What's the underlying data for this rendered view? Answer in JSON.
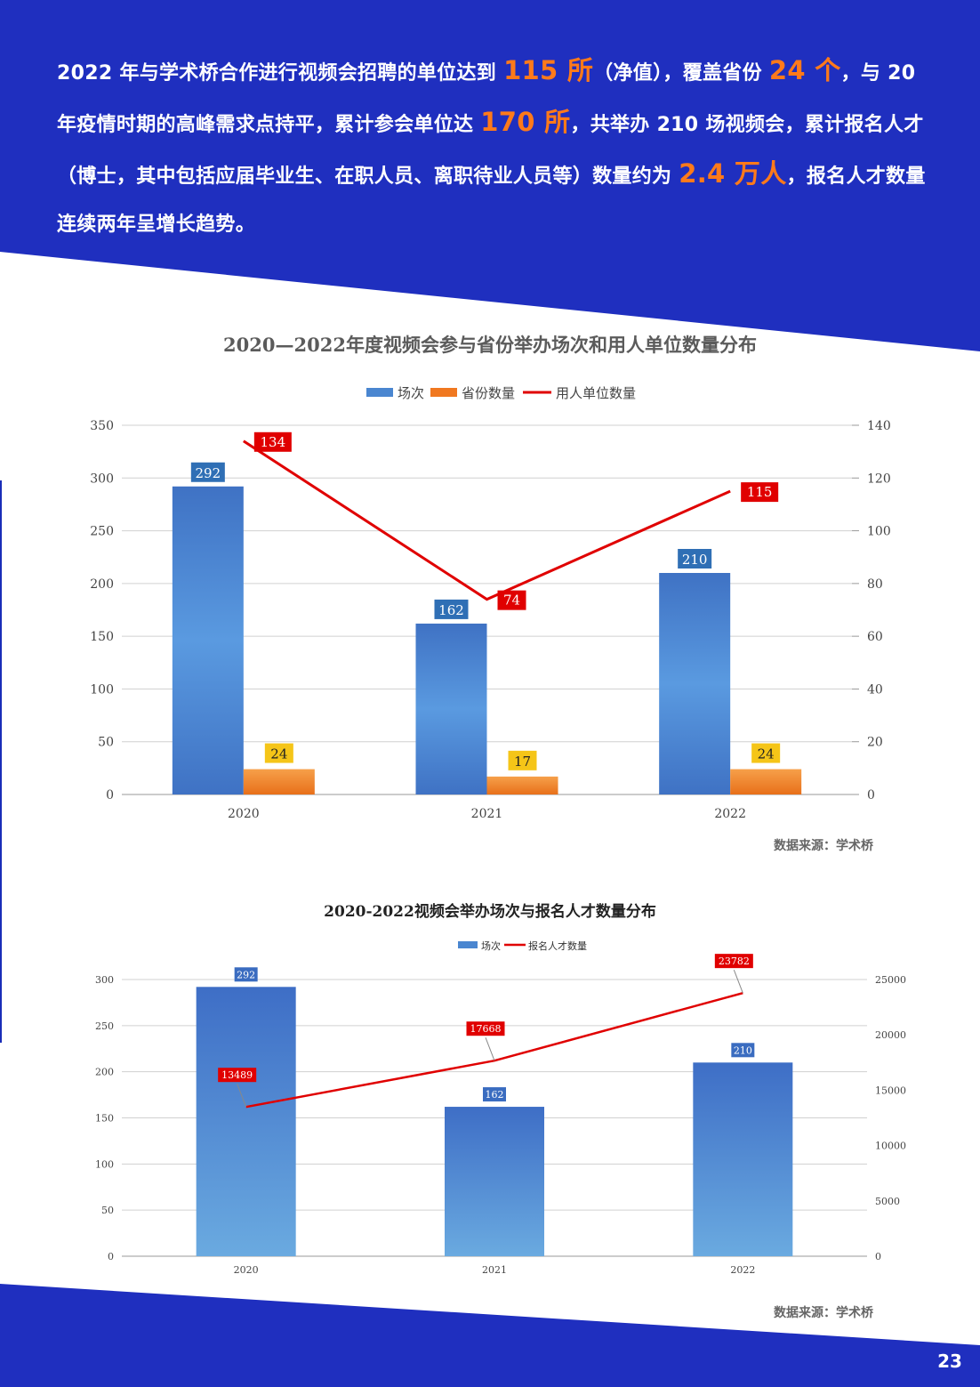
{
  "colors": {
    "brand_blue": "#1f2fbf",
    "highlight": "#ff7a1a",
    "bar_blue": "#4a86d0",
    "bar_orange": "#f07820",
    "line_red": "#e00000"
  },
  "intro": {
    "p1": "2022 年与学术桥合作进行视频会招聘的单位达到 ",
    "h1": "115 所",
    "p2": "（净值），覆盖省份 ",
    "h2": "24 个",
    "p3": "，与 20 年疫情时期的高峰需求点持平，累计参会单位达 ",
    "h3": "170 所",
    "p4": "，共举办 210 场视频会，累计报名人才（博士，其中包括应届毕业生、在职人员、离职待业人员等）数量约为 ",
    "h4": "2.4 万人",
    "p5": "，报名人才数量连续两年呈增长趋势。"
  },
  "page_number": "23",
  "chart_data": [
    {
      "type": "bar",
      "title": "2020—2022年度视频会参与省份举办场次和用人单位数量分布",
      "source": "数据来源：学术桥",
      "categories": [
        "2020",
        "2021",
        "2022"
      ],
      "series": [
        {
          "name": "场次",
          "type": "bar",
          "axis": "left",
          "values": [
            292,
            162,
            210
          ]
        },
        {
          "name": "省份数量",
          "type": "bar",
          "axis": "left",
          "values": [
            24,
            17,
            24
          ]
        },
        {
          "name": "用人单位数量",
          "type": "line",
          "axis": "right",
          "values": [
            134,
            74,
            115
          ]
        }
      ],
      "ylim_left": [
        0,
        350
      ],
      "yticks_left": [
        0,
        50,
        100,
        150,
        200,
        250,
        300,
        350
      ],
      "ylim_right": [
        0,
        140
      ],
      "yticks_right": [
        0,
        20,
        40,
        60,
        80,
        100,
        120,
        140
      ],
      "grid": true,
      "legend": "top-center"
    },
    {
      "type": "bar",
      "title": "2020-2022视频会举办场次与报名人才数量分布",
      "source": "数据来源：学术桥",
      "categories": [
        "2020",
        "2021",
        "2022"
      ],
      "series": [
        {
          "name": "场次",
          "type": "bar",
          "axis": "left",
          "values": [
            292,
            162,
            210
          ]
        },
        {
          "name": "报名人才数量",
          "type": "line",
          "axis": "right",
          "values": [
            13489,
            17668,
            23782
          ]
        }
      ],
      "ylim_left": [
        0,
        300
      ],
      "yticks_left": [
        0,
        50,
        100,
        150,
        200,
        250,
        300
      ],
      "ylim_right": [
        0,
        25000
      ],
      "yticks_right": [
        0,
        5000,
        10000,
        15000,
        20000,
        25000
      ],
      "grid": true,
      "legend": "top-center"
    }
  ]
}
